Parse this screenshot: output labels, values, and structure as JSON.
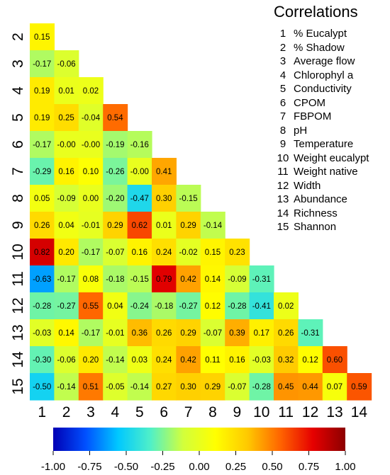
{
  "chart_data": {
    "type": "heatmap",
    "title": "",
    "legend_title": "Correlations",
    "variables": [
      "% Eucalypt",
      "% Shadow",
      "Average flow",
      "Chlorophyl a",
      "Conductivity",
      "CPOM",
      "FBPOM",
      "pH",
      "Temperature",
      "Weight eucalypt",
      "Weight native",
      "Width",
      "Abundance",
      "Richness",
      "Shannon"
    ],
    "row_labels": [
      "2",
      "3",
      "4",
      "5",
      "6",
      "7",
      "8",
      "9",
      "10",
      "11",
      "12",
      "13",
      "14",
      "15"
    ],
    "col_labels": [
      "1",
      "2",
      "3",
      "4",
      "5",
      "6",
      "7",
      "8",
      "9",
      "10",
      "11",
      "12",
      "13",
      "14"
    ],
    "values": [
      [
        0.15
      ],
      [
        -0.17,
        -0.06
      ],
      [
        0.19,
        0.01,
        0.02
      ],
      [
        0.19,
        0.25,
        -0.04,
        0.54
      ],
      [
        -0.17,
        -0.0,
        -0.0,
        -0.19,
        -0.16
      ],
      [
        -0.29,
        0.16,
        0.1,
        -0.26,
        -0.0,
        0.41
      ],
      [
        0.05,
        -0.09,
        0.0,
        -0.2,
        -0.47,
        0.3,
        -0.15
      ],
      [
        0.26,
        0.04,
        -0.01,
        0.29,
        0.62,
        0.01,
        0.29,
        -0.14
      ],
      [
        0.82,
        0.2,
        -0.17,
        -0.07,
        0.16,
        0.24,
        -0.02,
        0.15,
        0.23
      ],
      [
        -0.63,
        -0.17,
        0.08,
        -0.18,
        -0.15,
        0.79,
        0.42,
        0.14,
        -0.09,
        -0.31
      ],
      [
        -0.28,
        -0.27,
        0.55,
        0.04,
        -0.24,
        -0.18,
        -0.27,
        0.12,
        -0.28,
        -0.41,
        0.02
      ],
      [
        -0.03,
        0.14,
        -0.17,
        -0.01,
        0.36,
        0.26,
        0.29,
        -0.07,
        0.39,
        0.17,
        0.26,
        -0.31
      ],
      [
        -0.3,
        -0.06,
        0.2,
        -0.14,
        0.03,
        0.24,
        0.42,
        0.11,
        0.16,
        -0.03,
        0.32,
        0.12,
        0.6
      ],
      [
        -0.5,
        -0.14,
        0.51,
        -0.05,
        -0.14,
        0.27,
        0.3,
        0.29,
        -0.07,
        -0.28,
        0.45,
        0.44,
        0.07,
        0.59
      ]
    ],
    "value_labels": [
      [
        "0.15"
      ],
      [
        "-0.17",
        "-0.06"
      ],
      [
        "0.19",
        "0.01",
        "0.02"
      ],
      [
        "0.19",
        "0.25",
        "-0.04",
        "0.54"
      ],
      [
        "-0.17",
        "-0.00",
        "-0.00",
        "-0.19",
        "-0.16"
      ],
      [
        "-0.29",
        "0.16",
        "0.10",
        "-0.26",
        "-0.00",
        "0.41"
      ],
      [
        "0.05",
        "-0.09",
        "0.00",
        "-0.20",
        "-0.47",
        "0.30",
        "-0.15"
      ],
      [
        "0.26",
        "0.04",
        "-0.01",
        "0.29",
        "0.62",
        "0.01",
        "0.29",
        "-0.14"
      ],
      [
        "0.82",
        "0.20",
        "-0.17",
        "-0.07",
        "0.16",
        "0.24",
        "-0.02",
        "0.15",
        "0.23"
      ],
      [
        "-0.63",
        "-0.17",
        "0.08",
        "-0.18",
        "-0.15",
        "0.79",
        "0.42",
        "0.14",
        "-0.09",
        "-0.31"
      ],
      [
        "-0.28",
        "-0.27",
        "0.55",
        "0.04",
        "-0.24",
        "-0.18",
        "-0.27",
        "0.12",
        "-0.28",
        "-0.41",
        "0.02"
      ],
      [
        "-0.03",
        "0.14",
        "-0.17",
        "-0.01",
        "0.36",
        "0.26",
        "0.29",
        "-0.07",
        "0.39",
        "0.17",
        "0.26",
        "-0.31"
      ],
      [
        "-0.30",
        "-0.06",
        "0.20",
        "-0.14",
        "0.03",
        "0.24",
        "0.42",
        "0.11",
        "0.16",
        "-0.03",
        "0.32",
        "0.12",
        "0.60"
      ],
      [
        "-0.50",
        "-0.14",
        "0.51",
        "-0.05",
        "-0.14",
        "0.27",
        "0.30",
        "0.29",
        "-0.07",
        "-0.28",
        "0.45",
        "0.44",
        "0.07",
        "0.59"
      ]
    ],
    "colorbar": {
      "range": [
        -1.0,
        1.0
      ],
      "tick_labels": [
        "-1.00",
        "-0.75",
        "-0.50",
        "-0.25",
        "0.00",
        "0.25",
        "0.50",
        "0.75",
        "1.00"
      ],
      "colormap": [
        "#0000b4",
        "#0050ff",
        "#00c8ff",
        "#50f0c8",
        "#d2ff3c",
        "#ffff00",
        "#ffc800",
        "#ff6400",
        "#e60000",
        "#8c0000"
      ]
    }
  }
}
